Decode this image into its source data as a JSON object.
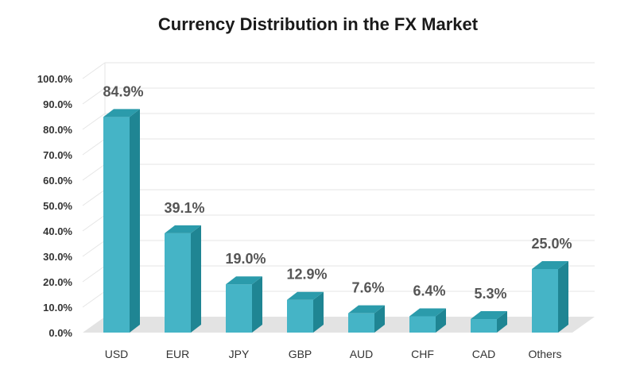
{
  "chart_data": {
    "type": "bar",
    "title": "Currency Distribution in the FX Market",
    "xlabel": "",
    "ylabel": "",
    "categories": [
      "USD",
      "EUR",
      "JPY",
      "GBP",
      "AUD",
      "CHF",
      "CAD",
      "Others"
    ],
    "values": [
      84.9,
      39.1,
      19.0,
      12.9,
      7.6,
      6.4,
      5.3,
      25.0
    ],
    "value_labels": [
      "84.9%",
      "39.1%",
      "19.0%",
      "12.9%",
      "7.6%",
      "6.4%",
      "5.3%",
      "25.0%"
    ],
    "ylim": [
      0,
      100
    ],
    "yticks": [
      "0.0%",
      "10.0%",
      "20.0%",
      "30.0%",
      "40.0%",
      "50.0%",
      "60.0%",
      "70.0%",
      "80.0%",
      "90.0%",
      "100.0%"
    ],
    "grid": true,
    "legend": "none",
    "colors": {
      "bar_front": "#45b4c6",
      "bar_side": "#1f8593",
      "bar_top": "#2b9bab",
      "floor": "#e3e3e3",
      "grid": "#e6e6e6"
    }
  }
}
